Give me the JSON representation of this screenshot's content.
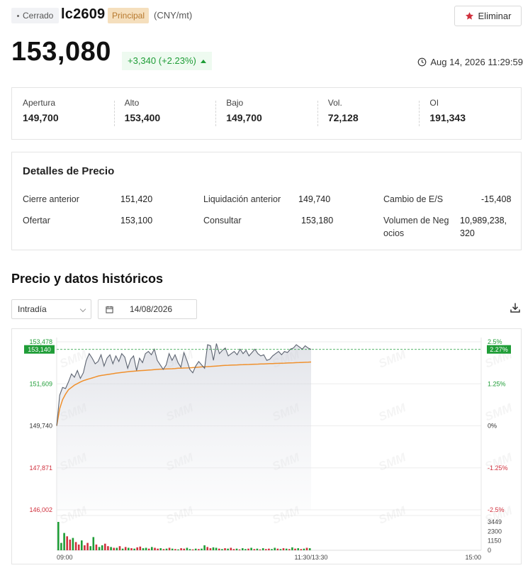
{
  "header": {
    "status": "Cerrado",
    "symbol": "lc2609",
    "tag": "Principal",
    "unit": "(CNY/mt)",
    "remove_label": "Eliminar"
  },
  "quote": {
    "price": "153,080",
    "change": "+3,340 (+2.23%)",
    "timestamp": "Aug 14, 2026 11:29:59"
  },
  "stats": [
    {
      "label": "Apertura",
      "value": "149,700"
    },
    {
      "label": "Alto",
      "value": "153,400"
    },
    {
      "label": "Bajo",
      "value": "149,700"
    },
    {
      "label": "Vol.",
      "value": "72,128"
    },
    {
      "label": "OI",
      "value": "191,343"
    }
  ],
  "details": {
    "title": "Detalles de Precio",
    "prev_close_label": "Cierre anterior",
    "prev_close_value": "151,420",
    "prev_settle_label": "Liquidación anterior",
    "prev_settle_value": "149,740",
    "es_change_label": "Cambio de E/S",
    "es_change_value": "-15,408",
    "bid_label": "Ofertar",
    "bid_value": "153,100",
    "ask_label": "Consultar",
    "ask_value": "153,180",
    "turnover_label_1": "Volumen de Neg",
    "turnover_label_2": "ocios",
    "turnover_value_1": "10,989,238,",
    "turnover_value_2": "320"
  },
  "history": {
    "title": "Precio y datos históricos",
    "range": "Intradía",
    "date": "14/08/2026"
  },
  "colors": {
    "up": "#1f9d37",
    "down": "#d0303d",
    "price_line": "#5c6370",
    "avg_line": "#f0902c"
  },
  "chart_data": {
    "type": "line",
    "x_ticks": [
      "09:00",
      "11:30/13:30",
      "15:00"
    ],
    "y_ticks_left": [
      "153,478",
      "151,609",
      "149,740",
      "147,871",
      "146,002"
    ],
    "y_ticks_right": [
      "2.5%",
      "1.25%",
      "0%",
      "-1.25%",
      "-2.5%"
    ],
    "ylim": [
      146002,
      153478
    ],
    "last_price_label": "153,140",
    "last_pct_label": "2.27%",
    "last_price": 153140,
    "volume_ticks": [
      "3449",
      "2300",
      "1150",
      "0"
    ],
    "volume_max": 3449,
    "watermark": "SMM",
    "series": [
      {
        "key": "price",
        "values": [
          149740,
          151100,
          151450,
          151400,
          151700,
          152050,
          151900,
          152200,
          151850,
          152100,
          152650,
          152950,
          152750,
          152500,
          152600,
          152900,
          152400,
          152750,
          152900,
          152500,
          152850,
          152600,
          152950,
          152800,
          152300,
          152700,
          152850,
          152200,
          152750,
          152550,
          152950,
          153050,
          152900,
          153150,
          152650,
          152450,
          152250,
          152450,
          152950,
          152650,
          152900,
          152550,
          152350,
          153000,
          152650,
          152250,
          152100,
          152400,
          152600,
          152450,
          152300,
          153350,
          153300,
          152650,
          153400,
          152950,
          153100,
          153200,
          152850,
          152950,
          153050,
          152900,
          153150,
          152950,
          153100,
          152850,
          153000,
          153150,
          152950,
          152850,
          152900,
          152650,
          152700,
          152850,
          152950,
          153050,
          152900,
          153050,
          153000,
          153150,
          153200,
          153350,
          153250,
          153150,
          153300,
          153200,
          153140
        ]
      },
      {
        "key": "average",
        "values": [
          149740,
          150500,
          150900,
          151150,
          151350,
          151450,
          151550,
          151620,
          151690,
          151750,
          151790,
          151830,
          151870,
          151910,
          151950,
          151980,
          152000,
          152020,
          152040,
          152060,
          152080,
          152100,
          152115,
          152130,
          152145,
          152160,
          152170,
          152180,
          152190,
          152200,
          152210,
          152220,
          152230,
          152240,
          152250,
          152260,
          152265,
          152270,
          152275,
          152280,
          152290,
          152300,
          152305,
          152310,
          152315,
          152320,
          152330,
          152340,
          152350,
          152360,
          152370,
          152375,
          152380,
          152390,
          152400,
          152410,
          152420,
          152430,
          152435,
          152440,
          152445,
          152450,
          152455,
          152460,
          152465,
          152470,
          152475,
          152480,
          152485,
          152490,
          152495,
          152500,
          152505,
          152510,
          152515,
          152520,
          152525,
          152530,
          152535,
          152540,
          152545,
          152550,
          152555,
          152560,
          152565,
          152570,
          152580
        ]
      }
    ],
    "volume": [
      {
        "v": 3449,
        "c": "up"
      },
      {
        "v": 900,
        "c": "up"
      },
      {
        "v": 2100,
        "c": "up"
      },
      {
        "v": 1700,
        "c": "down"
      },
      {
        "v": 1300,
        "c": "down"
      },
      {
        "v": 1500,
        "c": "up"
      },
      {
        "v": 1000,
        "c": "down"
      },
      {
        "v": 700,
        "c": "down"
      },
      {
        "v": 1200,
        "c": "up"
      },
      {
        "v": 600,
        "c": "down"
      },
      {
        "v": 900,
        "c": "down"
      },
      {
        "v": 500,
        "c": "up"
      },
      {
        "v": 1600,
        "c": "up"
      },
      {
        "v": 700,
        "c": "down"
      },
      {
        "v": 400,
        "c": "up"
      },
      {
        "v": 600,
        "c": "up"
      },
      {
        "v": 800,
        "c": "down"
      },
      {
        "v": 500,
        "c": "down"
      },
      {
        "v": 400,
        "c": "up"
      },
      {
        "v": 300,
        "c": "down"
      },
      {
        "v": 300,
        "c": "up"
      },
      {
        "v": 500,
        "c": "down"
      },
      {
        "v": 200,
        "c": "up"
      },
      {
        "v": 400,
        "c": "down"
      },
      {
        "v": 300,
        "c": "up"
      },
      {
        "v": 250,
        "c": "down"
      },
      {
        "v": 200,
        "c": "up"
      },
      {
        "v": 350,
        "c": "down"
      },
      {
        "v": 450,
        "c": "down"
      },
      {
        "v": 250,
        "c": "up"
      },
      {
        "v": 300,
        "c": "up"
      },
      {
        "v": 200,
        "c": "down"
      },
      {
        "v": 400,
        "c": "up"
      },
      {
        "v": 300,
        "c": "down"
      },
      {
        "v": 200,
        "c": "down"
      },
      {
        "v": 250,
        "c": "up"
      },
      {
        "v": 150,
        "c": "down"
      },
      {
        "v": 200,
        "c": "up"
      },
      {
        "v": 300,
        "c": "down"
      },
      {
        "v": 200,
        "c": "up"
      },
      {
        "v": 150,
        "c": "down"
      },
      {
        "v": 100,
        "c": "up"
      },
      {
        "v": 250,
        "c": "down"
      },
      {
        "v": 200,
        "c": "down"
      },
      {
        "v": 300,
        "c": "up"
      },
      {
        "v": 150,
        "c": "up"
      },
      {
        "v": 100,
        "c": "down"
      },
      {
        "v": 200,
        "c": "up"
      },
      {
        "v": 150,
        "c": "down"
      },
      {
        "v": 200,
        "c": "up"
      },
      {
        "v": 600,
        "c": "up"
      },
      {
        "v": 400,
        "c": "down"
      },
      {
        "v": 250,
        "c": "down"
      },
      {
        "v": 350,
        "c": "up"
      },
      {
        "v": 300,
        "c": "up"
      },
      {
        "v": 200,
        "c": "down"
      },
      {
        "v": 150,
        "c": "up"
      },
      {
        "v": 250,
        "c": "down"
      },
      {
        "v": 200,
        "c": "up"
      },
      {
        "v": 300,
        "c": "down"
      },
      {
        "v": 150,
        "c": "down"
      },
      {
        "v": 200,
        "c": "up"
      },
      {
        "v": 100,
        "c": "down"
      },
      {
        "v": 250,
        "c": "up"
      },
      {
        "v": 150,
        "c": "up"
      },
      {
        "v": 200,
        "c": "down"
      },
      {
        "v": 300,
        "c": "up"
      },
      {
        "v": 150,
        "c": "down"
      },
      {
        "v": 200,
        "c": "up"
      },
      {
        "v": 100,
        "c": "down"
      },
      {
        "v": 250,
        "c": "up"
      },
      {
        "v": 150,
        "c": "down"
      },
      {
        "v": 200,
        "c": "down"
      },
      {
        "v": 150,
        "c": "up"
      },
      {
        "v": 300,
        "c": "up"
      },
      {
        "v": 200,
        "c": "down"
      },
      {
        "v": 150,
        "c": "up"
      },
      {
        "v": 250,
        "c": "down"
      },
      {
        "v": 200,
        "c": "up"
      },
      {
        "v": 150,
        "c": "down"
      },
      {
        "v": 350,
        "c": "up"
      },
      {
        "v": 200,
        "c": "down"
      },
      {
        "v": 250,
        "c": "up"
      },
      {
        "v": 150,
        "c": "down"
      },
      {
        "v": 200,
        "c": "up"
      },
      {
        "v": 300,
        "c": "down"
      },
      {
        "v": 250,
        "c": "up"
      }
    ]
  }
}
